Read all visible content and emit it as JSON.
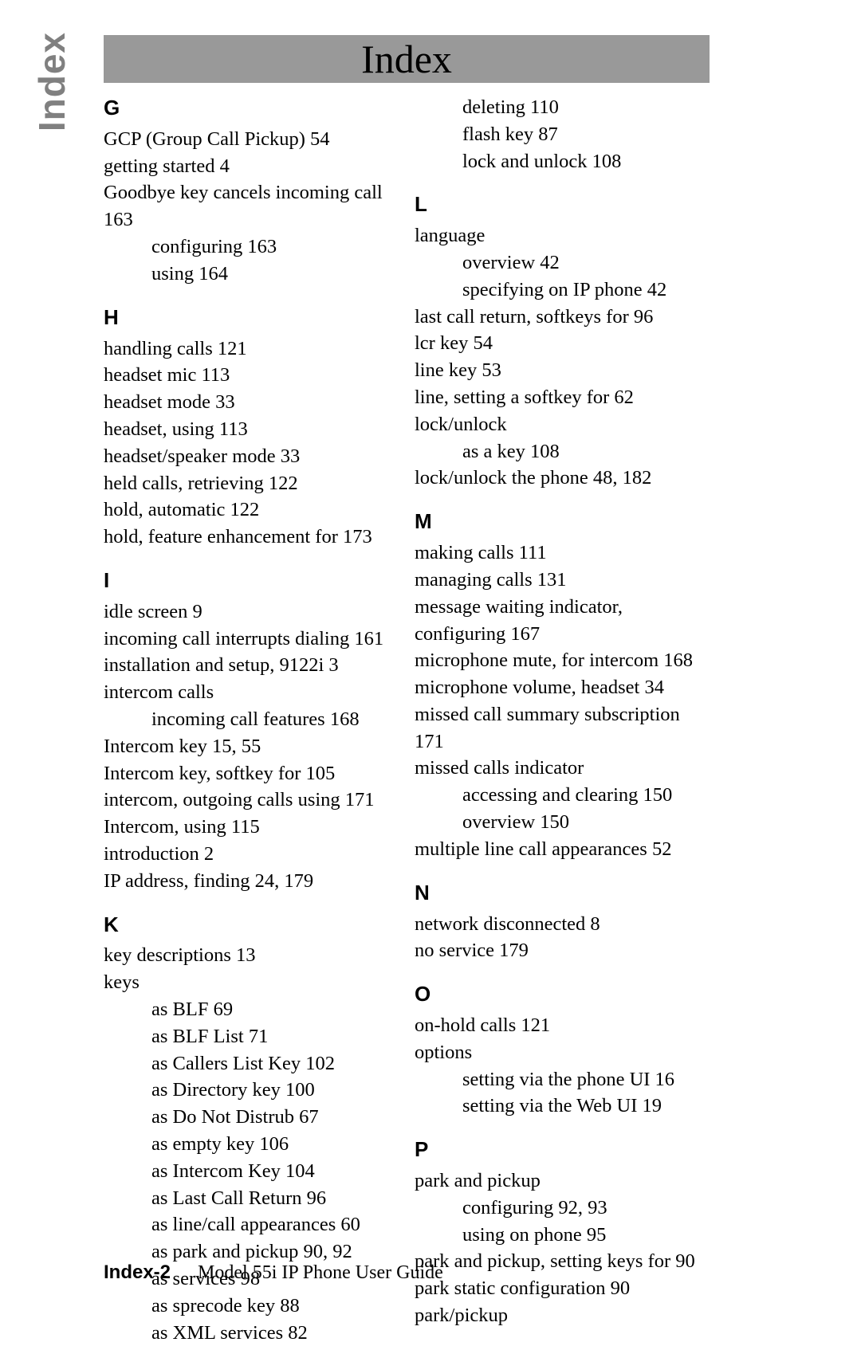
{
  "sideLabel": "Index",
  "title": "Index",
  "footer": {
    "page": "Index-2",
    "book": "Model 55i IP Phone User Guide"
  },
  "colors": {
    "sidebarText": "#808080",
    "titleBg": "#999999",
    "text": "#000000",
    "bg": "#ffffff"
  },
  "left": [
    {
      "type": "letter",
      "text": "G",
      "first": true
    },
    {
      "type": "entry",
      "text": "GCP (Group Call Pickup) 54"
    },
    {
      "type": "entry",
      "text": "getting started 4"
    },
    {
      "type": "entry",
      "text": "Goodbye key cancels incoming call 163"
    },
    {
      "type": "sub",
      "text": "configuring 163"
    },
    {
      "type": "sub",
      "text": "using 164"
    },
    {
      "type": "letter",
      "text": "H"
    },
    {
      "type": "entry",
      "text": "handling calls 121"
    },
    {
      "type": "entry",
      "text": "headset mic 113"
    },
    {
      "type": "entry",
      "text": "headset mode 33"
    },
    {
      "type": "entry",
      "text": "headset, using 113"
    },
    {
      "type": "entry",
      "text": "headset/speaker mode 33"
    },
    {
      "type": "entry",
      "text": "held calls, retrieving 122"
    },
    {
      "type": "entry",
      "text": "hold, automatic 122"
    },
    {
      "type": "entry",
      "text": "hold, feature enhancement for 173"
    },
    {
      "type": "letter",
      "text": "I"
    },
    {
      "type": "entry",
      "text": "idle screen 9"
    },
    {
      "type": "entry",
      "text": "incoming call interrupts dialing 161"
    },
    {
      "type": "entry",
      "text": "installation and setup, 9122i 3"
    },
    {
      "type": "entry",
      "text": "intercom calls"
    },
    {
      "type": "sub",
      "text": "incoming call features 168"
    },
    {
      "type": "entry",
      "text": "Intercom key 15, 55"
    },
    {
      "type": "entry",
      "text": "Intercom key, softkey for 105"
    },
    {
      "type": "entry",
      "text": "intercom, outgoing calls using 171"
    },
    {
      "type": "entry",
      "text": "Intercom, using 115"
    },
    {
      "type": "entry",
      "text": "introduction 2"
    },
    {
      "type": "entry",
      "text": "IP address, finding 24, 179"
    },
    {
      "type": "letter",
      "text": "K"
    },
    {
      "type": "entry",
      "text": "key descriptions 13"
    },
    {
      "type": "entry",
      "text": "keys"
    },
    {
      "type": "sub",
      "text": "as BLF 69"
    },
    {
      "type": "sub",
      "text": "as BLF List 71"
    },
    {
      "type": "sub",
      "text": "as Callers List Key 102"
    },
    {
      "type": "sub",
      "text": "as Directory key 100"
    },
    {
      "type": "sub",
      "text": "as Do Not Distrub 67"
    },
    {
      "type": "sub",
      "text": "as empty key 106"
    },
    {
      "type": "sub",
      "text": "as Intercom Key 104"
    },
    {
      "type": "sub",
      "text": "as Last Call Return 96"
    },
    {
      "type": "sub",
      "text": "as line/call appearances 60"
    },
    {
      "type": "sub",
      "text": "as park and pickup 90, 92"
    },
    {
      "type": "sub",
      "text": "as services 98"
    },
    {
      "type": "sub",
      "text": "as sprecode key 88"
    },
    {
      "type": "sub",
      "text": "as XML services 82"
    }
  ],
  "right": [
    {
      "type": "sub",
      "text": "deleting 110"
    },
    {
      "type": "sub",
      "text": "flash key 87"
    },
    {
      "type": "sub",
      "text": "lock and unlock 108"
    },
    {
      "type": "letter",
      "text": "L"
    },
    {
      "type": "entry",
      "text": "language"
    },
    {
      "type": "sub",
      "text": "overview 42"
    },
    {
      "type": "sub",
      "text": "specifying on IP phone 42"
    },
    {
      "type": "entry",
      "text": "last call return, softkeys for 96"
    },
    {
      "type": "entry",
      "text": "lcr key 54"
    },
    {
      "type": "entry",
      "text": "line key 53"
    },
    {
      "type": "entry",
      "text": "line, setting a softkey for 62"
    },
    {
      "type": "entry",
      "text": "lock/unlock"
    },
    {
      "type": "sub",
      "text": "as a key 108"
    },
    {
      "type": "entry",
      "text": "lock/unlock the phone 48, 182"
    },
    {
      "type": "letter",
      "text": "M"
    },
    {
      "type": "entry",
      "text": "making calls 111"
    },
    {
      "type": "entry",
      "text": "managing calls 131"
    },
    {
      "type": "entry",
      "text": "message waiting indicator, configuring 167"
    },
    {
      "type": "entry",
      "text": "microphone mute, for intercom 168"
    },
    {
      "type": "entry",
      "text": "microphone volume, headset 34"
    },
    {
      "type": "entry",
      "text": "missed call summary subscription 171"
    },
    {
      "type": "entry",
      "text": "missed calls indicator"
    },
    {
      "type": "sub",
      "text": "accessing and clearing 150"
    },
    {
      "type": "sub",
      "text": "overview 150"
    },
    {
      "type": "entry",
      "text": "multiple line call appearances 52"
    },
    {
      "type": "letter",
      "text": "N"
    },
    {
      "type": "entry",
      "text": "network disconnected 8"
    },
    {
      "type": "entry",
      "text": "no service 179"
    },
    {
      "type": "letter",
      "text": "O"
    },
    {
      "type": "entry",
      "text": "on-hold calls 121"
    },
    {
      "type": "entry",
      "text": "options"
    },
    {
      "type": "sub",
      "text": "setting via the phone UI 16"
    },
    {
      "type": "sub",
      "text": "setting via the Web UI 19"
    },
    {
      "type": "letter",
      "text": "P"
    },
    {
      "type": "entry",
      "text": "park and pickup"
    },
    {
      "type": "sub",
      "text": "configuring 92, 93"
    },
    {
      "type": "sub",
      "text": "using on phone 95"
    },
    {
      "type": "entry",
      "text": "park and pickup, setting keys for 90"
    },
    {
      "type": "entry",
      "text": "park static configuration 90"
    },
    {
      "type": "entry",
      "text": "park/pickup"
    }
  ]
}
